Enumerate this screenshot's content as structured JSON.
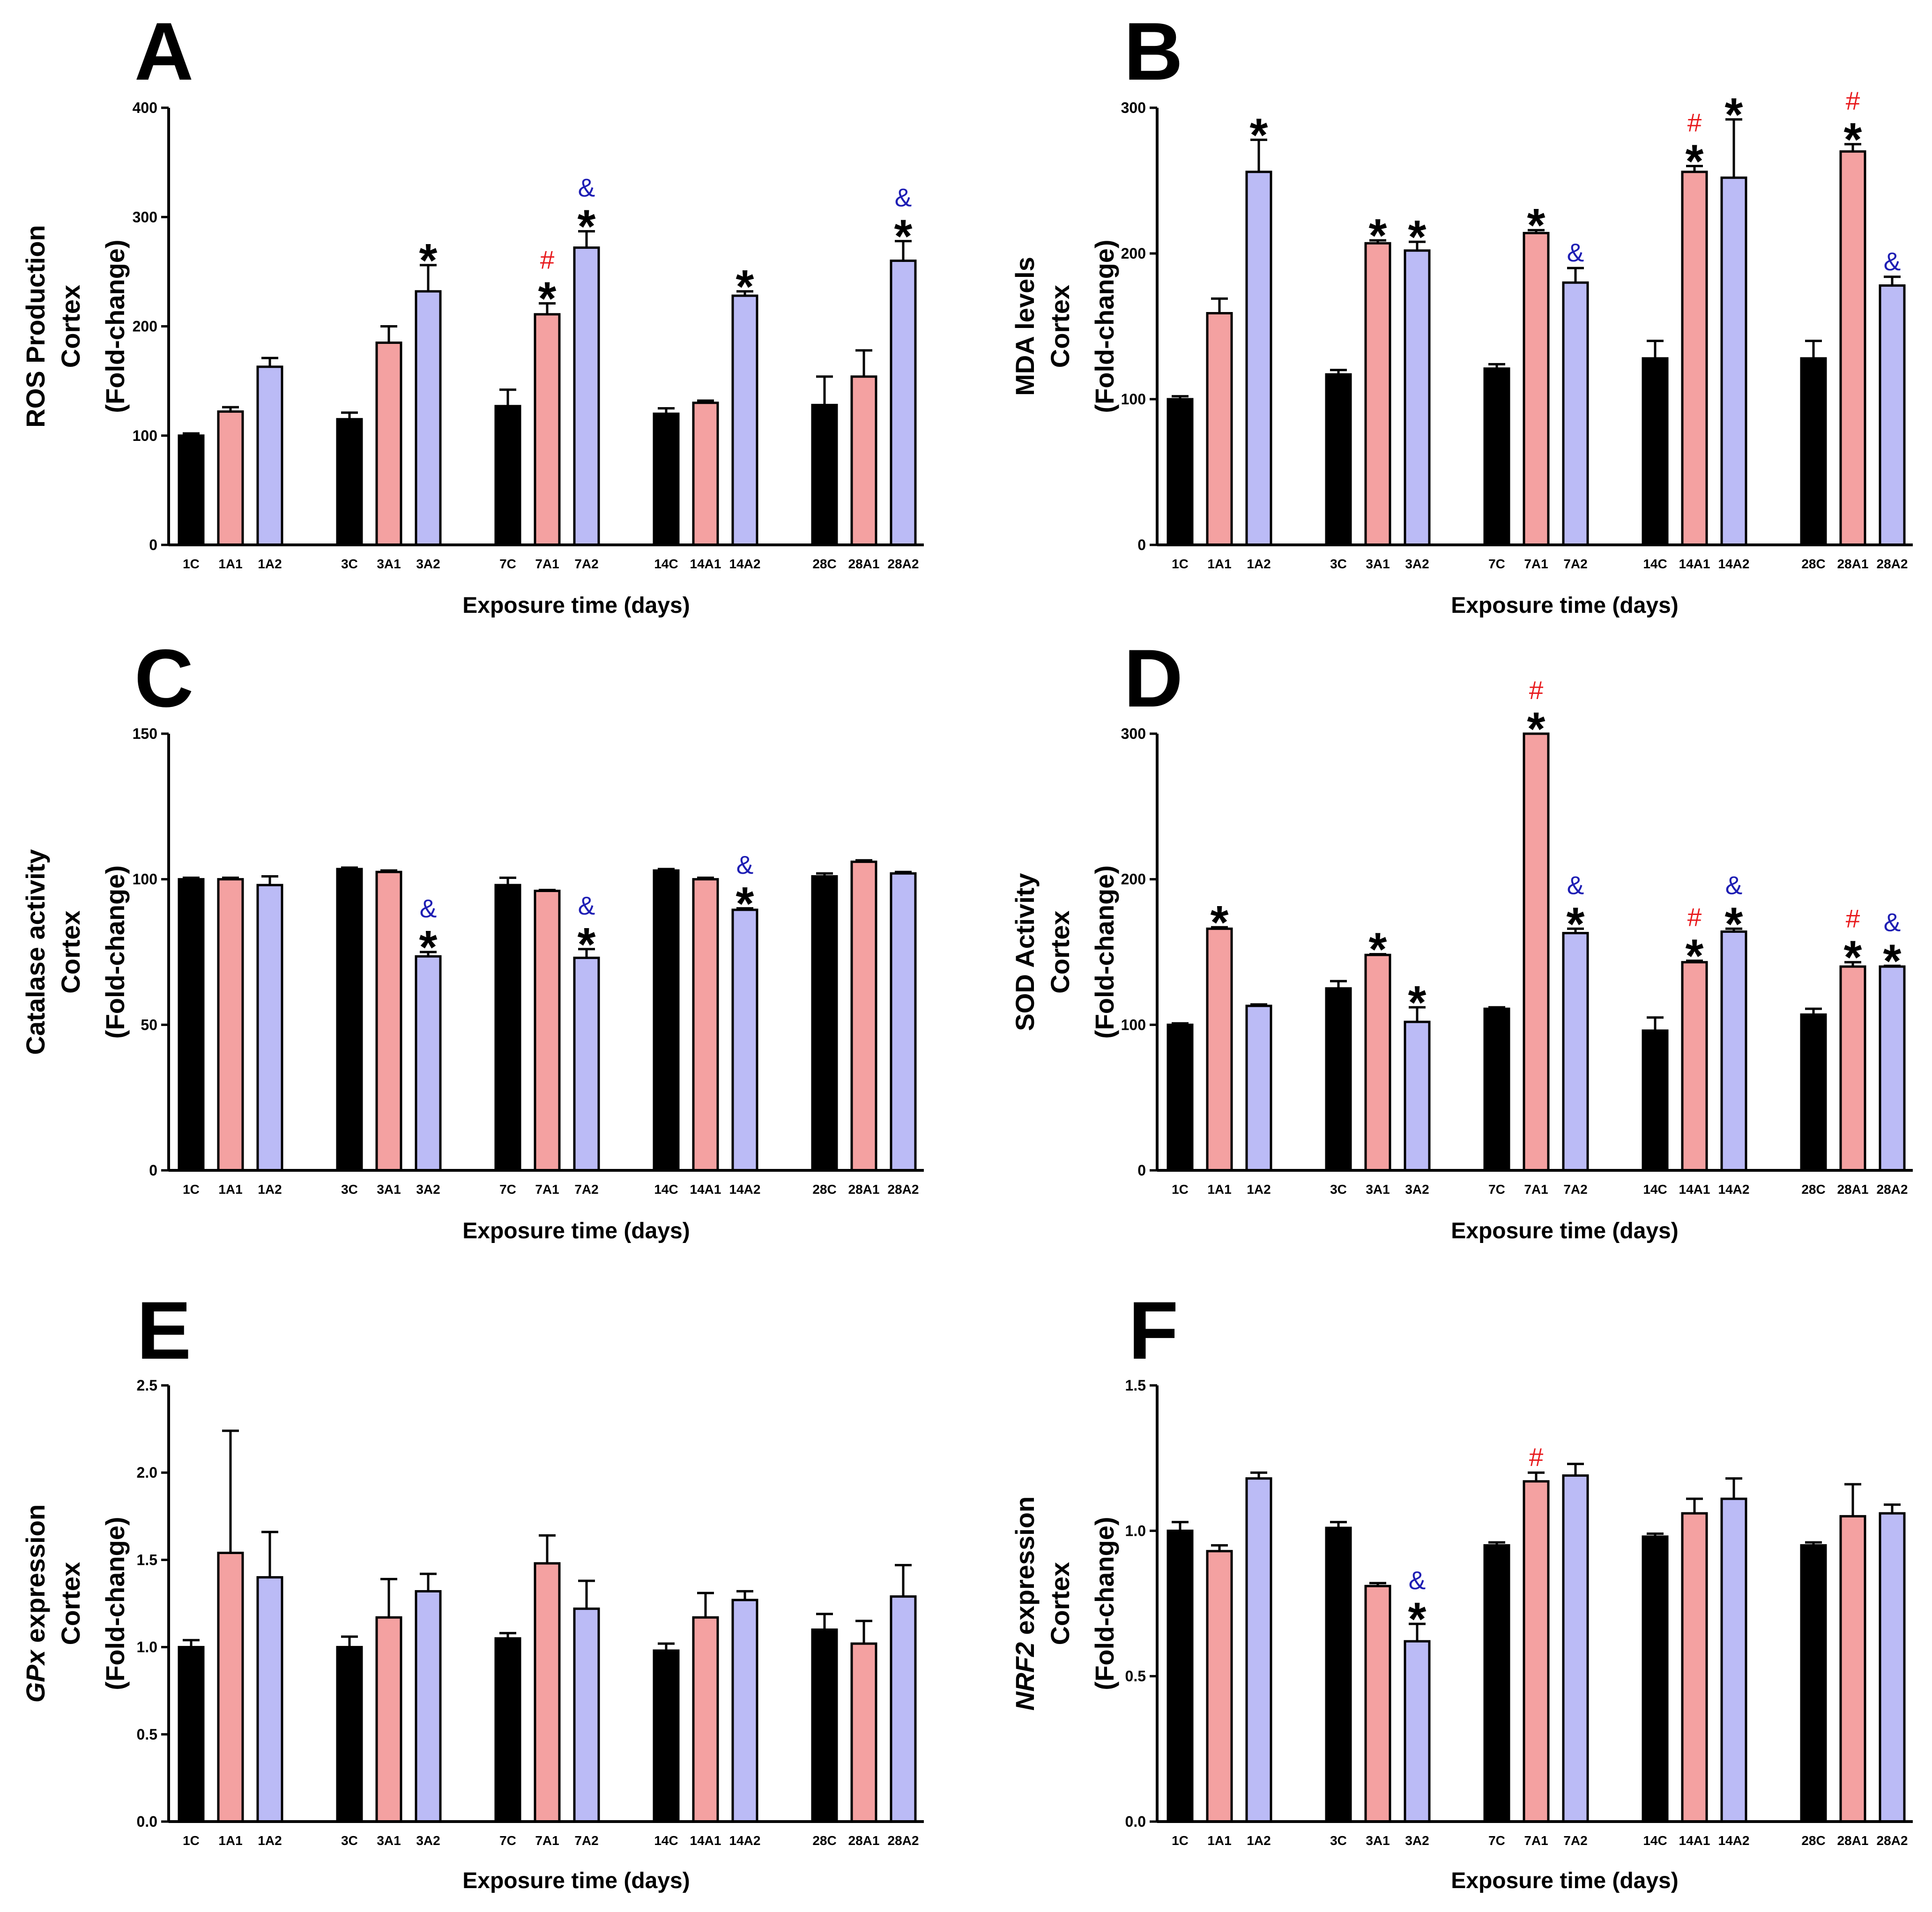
{
  "figure": {
    "xlabel": "Exposure time (days)",
    "series_colors": {
      "C": "#000000",
      "A1": "#F4A1A1",
      "A2": "#BBBBF6"
    },
    "mark_colors": {
      "*": "#000000",
      "#": "#E8191C",
      "&": "#1E1EB4"
    }
  },
  "chart_data": [
    {
      "panel": "A",
      "type": "bar",
      "ylabel": [
        "ROS Production",
        "Cortex",
        "(Fold-change)"
      ],
      "xlabel": "Exposure time (days)",
      "ylim": [
        0,
        400
      ],
      "yticks": [
        0,
        100,
        200,
        300,
        400
      ],
      "ytick_labels": [
        "0",
        "100",
        "200",
        "300",
        "400"
      ],
      "categories": [
        "1C",
        "1A1",
        "1A2",
        "3C",
        "3A1",
        "3A2",
        "7C",
        "7A1",
        "7A2",
        "14C",
        "14A1",
        "14A2",
        "28C",
        "28A1",
        "28A2"
      ],
      "values": [
        100,
        122,
        163,
        115,
        185,
        232,
        127,
        211,
        272,
        120,
        130,
        228,
        128,
        154,
        260
      ],
      "errors": [
        2,
        4,
        8,
        6,
        15,
        24,
        15,
        10,
        15,
        5,
        2,
        4,
        26,
        24,
        18
      ],
      "marks": [
        "",
        "",
        "",
        "",
        "",
        "*",
        "",
        "#*",
        "&*",
        "",
        "",
        "*",
        "",
        "",
        "&*"
      ]
    },
    {
      "panel": "B",
      "type": "bar",
      "ylabel": [
        "MDA levels",
        "Cortex",
        "(Fold-change)"
      ],
      "xlabel": "Exposure time (days)",
      "ylim": [
        0,
        300
      ],
      "yticks": [
        0,
        100,
        200,
        300
      ],
      "ytick_labels": [
        "0",
        "100",
        "200",
        "300"
      ],
      "categories": [
        "1C",
        "1A1",
        "1A2",
        "3C",
        "3A1",
        "3A2",
        "7C",
        "7A1",
        "7A2",
        "14C",
        "14A1",
        "14A2",
        "28C",
        "28A1",
        "28A2"
      ],
      "values": [
        100,
        159,
        256,
        117,
        207,
        202,
        121,
        214,
        180,
        128,
        256,
        252,
        128,
        270,
        178
      ],
      "errors": [
        2,
        10,
        22,
        3,
        2,
        6,
        3,
        2,
        10,
        12,
        4,
        40,
        12,
        5,
        6
      ],
      "marks": [
        "",
        "",
        "*",
        "",
        "*",
        "*",
        "",
        "*",
        "&",
        "",
        "#*",
        "*",
        "",
        "#*",
        "&"
      ]
    },
    {
      "panel": "C",
      "type": "bar",
      "ylabel": [
        "Catalase activity",
        "Cortex",
        "(Fold-change)"
      ],
      "xlabel": "Exposure time (days)",
      "ylim": [
        0,
        150
      ],
      "yticks": [
        0,
        50,
        100,
        150
      ],
      "ytick_labels": [
        "0",
        "50",
        "100",
        "150"
      ],
      "categories": [
        "1C",
        "1A1",
        "1A2",
        "3C",
        "3A1",
        "3A2",
        "7C",
        "7A1",
        "7A2",
        "14C",
        "14A1",
        "14A2",
        "28C",
        "28A1",
        "28A2"
      ],
      "values": [
        100,
        100,
        98,
        103.5,
        102.5,
        73.5,
        98,
        96,
        73,
        103,
        100,
        89.5,
        101,
        106,
        102
      ],
      "errors": [
        0.5,
        0.5,
        3,
        0.5,
        0.5,
        1.5,
        2.5,
        0.3,
        3,
        0.5,
        0.5,
        0.5,
        1,
        0.5,
        0.5
      ],
      "marks": [
        "",
        "",
        "",
        "",
        "",
        "&*",
        "",
        "",
        "&*",
        "",
        "",
        "&*",
        "",
        "",
        ""
      ]
    },
    {
      "panel": "D",
      "type": "bar",
      "ylabel": [
        "SOD Activity",
        "Cortex",
        "(Fold-change)"
      ],
      "xlabel": "Exposure time (days)",
      "ylim": [
        0,
        300
      ],
      "yticks": [
        0,
        100,
        200,
        300
      ],
      "ytick_labels": [
        "0",
        "100",
        "200",
        "300"
      ],
      "categories": [
        "1C",
        "1A1",
        "1A2",
        "3C",
        "3A1",
        "3A2",
        "7C",
        "7A1",
        "7A2",
        "14C",
        "14A1",
        "14A2",
        "28C",
        "28A1",
        "28A2"
      ],
      "values": [
        100,
        166,
        113,
        125,
        148,
        102,
        111,
        300,
        163,
        96,
        143,
        164,
        107,
        140,
        140
      ],
      "errors": [
        1,
        1,
        1,
        5,
        0.5,
        10,
        1,
        0,
        3,
        9,
        1,
        2,
        4,
        3,
        0.5
      ],
      "marks": [
        "",
        "*",
        "",
        "",
        "*",
        "*",
        "",
        "#*",
        "&*",
        "",
        "#*",
        "&*",
        "",
        "#*",
        "&*"
      ]
    },
    {
      "panel": "E",
      "type": "bar",
      "ylabel_italic": "GPx",
      "ylabel": [
        " expression",
        "Cortex",
        "(Fold-change)"
      ],
      "xlabel": "Exposure time (days)",
      "ylim": [
        0,
        2.5
      ],
      "yticks": [
        0,
        0.5,
        1,
        1.5,
        2,
        2.5
      ],
      "ytick_labels": [
        "0.0",
        "0.5",
        "1.0",
        "1.5",
        "2.0",
        "2.5"
      ],
      "categories": [
        "1C",
        "1A1",
        "1A2",
        "3C",
        "3A1",
        "3A2",
        "7C",
        "7A1",
        "7A2",
        "14C",
        "14A1",
        "14A2",
        "28C",
        "28A1",
        "28A2"
      ],
      "values": [
        1.0,
        1.54,
        1.4,
        1.0,
        1.17,
        1.32,
        1.05,
        1.48,
        1.22,
        0.98,
        1.17,
        1.27,
        1.1,
        1.02,
        1.29
      ],
      "errors": [
        0.04,
        0.7,
        0.26,
        0.06,
        0.22,
        0.1,
        0.03,
        0.16,
        0.16,
        0.04,
        0.14,
        0.05,
        0.09,
        0.13,
        0.18
      ],
      "marks": [
        "",
        "",
        "",
        "",
        "",
        "",
        "",
        "",
        "",
        "",
        "",
        "",
        "",
        "",
        ""
      ]
    },
    {
      "panel": "F",
      "type": "bar",
      "ylabel_italic": "NRF2",
      "ylabel": [
        " expression",
        "Cortex",
        "(Fold-change)"
      ],
      "xlabel": "Exposure time (days)",
      "ylim": [
        0,
        1.5
      ],
      "yticks": [
        0,
        0.5,
        1,
        1.5
      ],
      "ytick_labels": [
        "0.0",
        "0.5",
        "1.0",
        "1.5"
      ],
      "categories": [
        "1C",
        "1A1",
        "1A2",
        "3C",
        "3A1",
        "3A2",
        "7C",
        "7A1",
        "7A2",
        "14C",
        "14A1",
        "14A2",
        "28C",
        "28A1",
        "28A2"
      ],
      "values": [
        1.0,
        0.93,
        1.18,
        1.01,
        0.81,
        0.62,
        0.95,
        1.17,
        1.19,
        0.98,
        1.06,
        1.11,
        0.95,
        1.05,
        1.06
      ],
      "errors": [
        0.03,
        0.02,
        0.02,
        0.02,
        0.01,
        0.06,
        0.01,
        0.03,
        0.04,
        0.01,
        0.05,
        0.07,
        0.01,
        0.11,
        0.03
      ],
      "marks": [
        "",
        "",
        "",
        "",
        "",
        "&*",
        "",
        "#",
        "",
        "",
        "",
        "",
        "",
        "",
        ""
      ]
    }
  ]
}
